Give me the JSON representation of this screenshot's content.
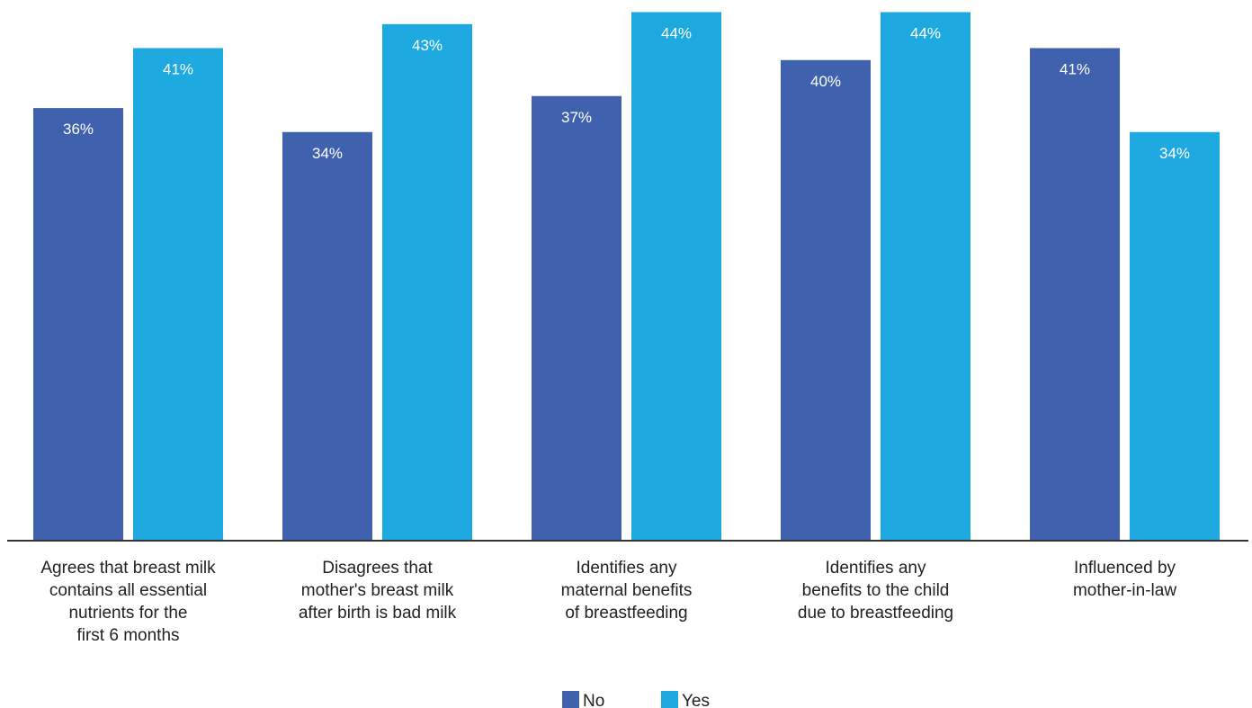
{
  "chart_data": {
    "type": "bar",
    "categories": [
      [
        "Agrees that breast milk",
        "contains all essential",
        "nutrients for the",
        "first 6 months"
      ],
      [
        "Disagrees that",
        "mother's breast milk",
        "after birth is bad milk"
      ],
      [
        "Identifies any",
        "maternal benefits",
        "of breastfeeding"
      ],
      [
        "Identifies any",
        "benefits to the child",
        "due to breastfeeding"
      ],
      [
        "Influenced by",
        "mother-in-law"
      ]
    ],
    "series": [
      {
        "name": "No",
        "color": "#4061ae",
        "values": [
          36,
          34,
          37,
          40,
          41
        ],
        "labels": [
          "36%",
          "34%",
          "37%",
          "40%",
          "41%"
        ]
      },
      {
        "name": "Yes",
        "color": "#1ea9e1",
        "values": [
          41,
          43,
          44,
          44,
          34
        ],
        "labels": [
          "41%",
          "43%",
          "44%",
          "44%",
          "34%"
        ]
      }
    ],
    "title": "",
    "xlabel": "",
    "ylabel": "",
    "ylim": [
      0,
      45
    ],
    "grid": false,
    "legend": "bottom-center",
    "axis_color": "#333333"
  }
}
